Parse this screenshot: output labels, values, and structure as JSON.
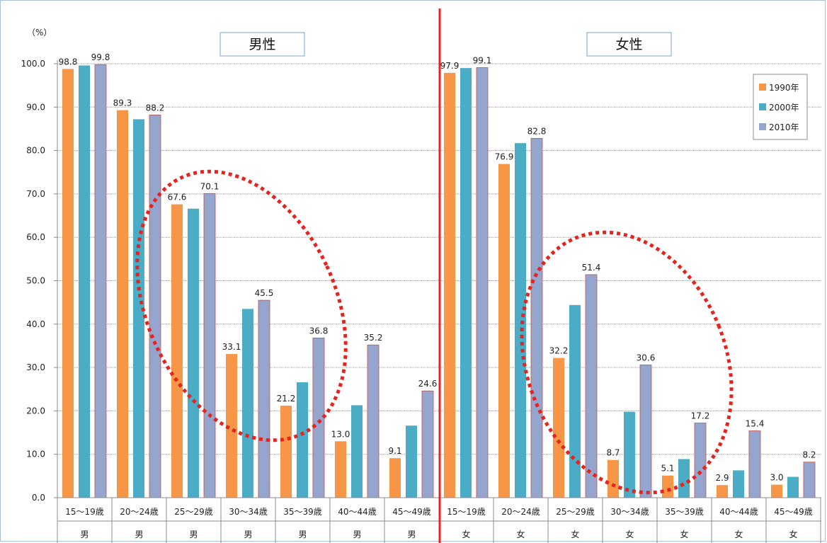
{
  "chart_data": {
    "type": "bar",
    "unit_label": "（%）",
    "ylim": [
      0,
      100
    ],
    "yticks": [
      "0.0",
      "10.0",
      "20.0",
      "30.0",
      "40.0",
      "50.0",
      "60.0",
      "70.0",
      "80.0",
      "90.0",
      "100.0"
    ],
    "panels": [
      {
        "title": "男性",
        "sex_label": "男"
      },
      {
        "title": "女性",
        "sex_label": "女"
      }
    ],
    "age_groups": [
      "15〜19歳",
      "20〜24歳",
      "25〜29歳",
      "30〜34歳",
      "35〜39歳",
      "40〜44歳",
      "45〜49歳"
    ],
    "series": [
      {
        "name": "1990年",
        "color": "#f79646",
        "male": [
          98.8,
          89.3,
          67.6,
          33.1,
          21.2,
          13.0,
          9.1
        ],
        "female": [
          97.9,
          76.9,
          32.2,
          8.7,
          5.1,
          2.9,
          3.0
        ]
      },
      {
        "name": "2000年",
        "color": "#4bacc6",
        "male": [
          99.6,
          87.2,
          66.6,
          43.5,
          26.6,
          21.3,
          16.6
        ],
        "female": [
          99.0,
          81.7,
          44.4,
          19.8,
          8.9,
          6.3,
          4.8
        ]
      },
      {
        "name": "2010年",
        "color": "#95a6ce",
        "male": [
          99.8,
          88.2,
          70.1,
          45.5,
          36.8,
          35.2,
          24.6
        ],
        "female": [
          99.1,
          82.8,
          51.4,
          30.6,
          17.2,
          15.4,
          8.2
        ]
      }
    ],
    "labeled_series": [
      "1990年",
      "2010年"
    ],
    "legend": {
      "placement": "top-right"
    },
    "grid": true,
    "divider_color": "#e8221c",
    "annotation_color": "#e8221c"
  }
}
